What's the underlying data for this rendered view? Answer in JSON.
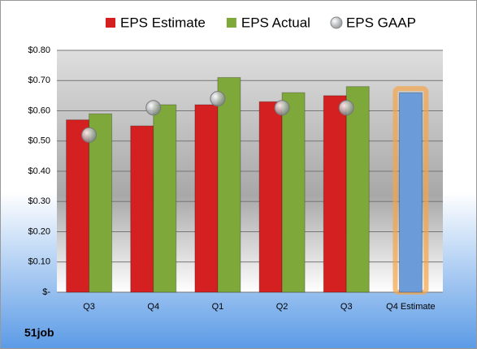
{
  "chart_data": {
    "type": "bar",
    "categories": [
      "Q3",
      "Q4",
      "Q1",
      "Q2",
      "Q3",
      "Q4 Estimate"
    ],
    "series": [
      {
        "name": "EPS Estimate",
        "color": "#d42020",
        "values": [
          0.57,
          0.55,
          0.62,
          0.63,
          0.65,
          0.66
        ]
      },
      {
        "name": "EPS Actual",
        "color": "#7fa83a",
        "values": [
          0.59,
          0.62,
          0.71,
          0.66,
          0.68,
          null
        ]
      },
      {
        "name": "EPS GAAP",
        "color": "#a0a6ad",
        "marker": "circle",
        "values": [
          0.52,
          0.61,
          0.64,
          0.61,
          0.61,
          null
        ]
      }
    ],
    "highlight": {
      "index": 5,
      "color": "#6b9bd8",
      "glow": "#f5a54a"
    },
    "ylim": [
      0,
      0.8
    ],
    "yticks": [
      {
        "value": 0,
        "label": "$-"
      },
      {
        "value": 0.1,
        "label": "$0.10"
      },
      {
        "value": 0.2,
        "label": "$0.20"
      },
      {
        "value": 0.3,
        "label": "$0.30"
      },
      {
        "value": 0.4,
        "label": "$0.40"
      },
      {
        "value": 0.5,
        "label": "$0.50"
      },
      {
        "value": 0.6,
        "label": "$0.60"
      },
      {
        "value": 0.7,
        "label": "$0.70"
      },
      {
        "value": 0.8,
        "label": "$0.80"
      }
    ],
    "grid": true,
    "legend": "top",
    "footer": "51job"
  }
}
